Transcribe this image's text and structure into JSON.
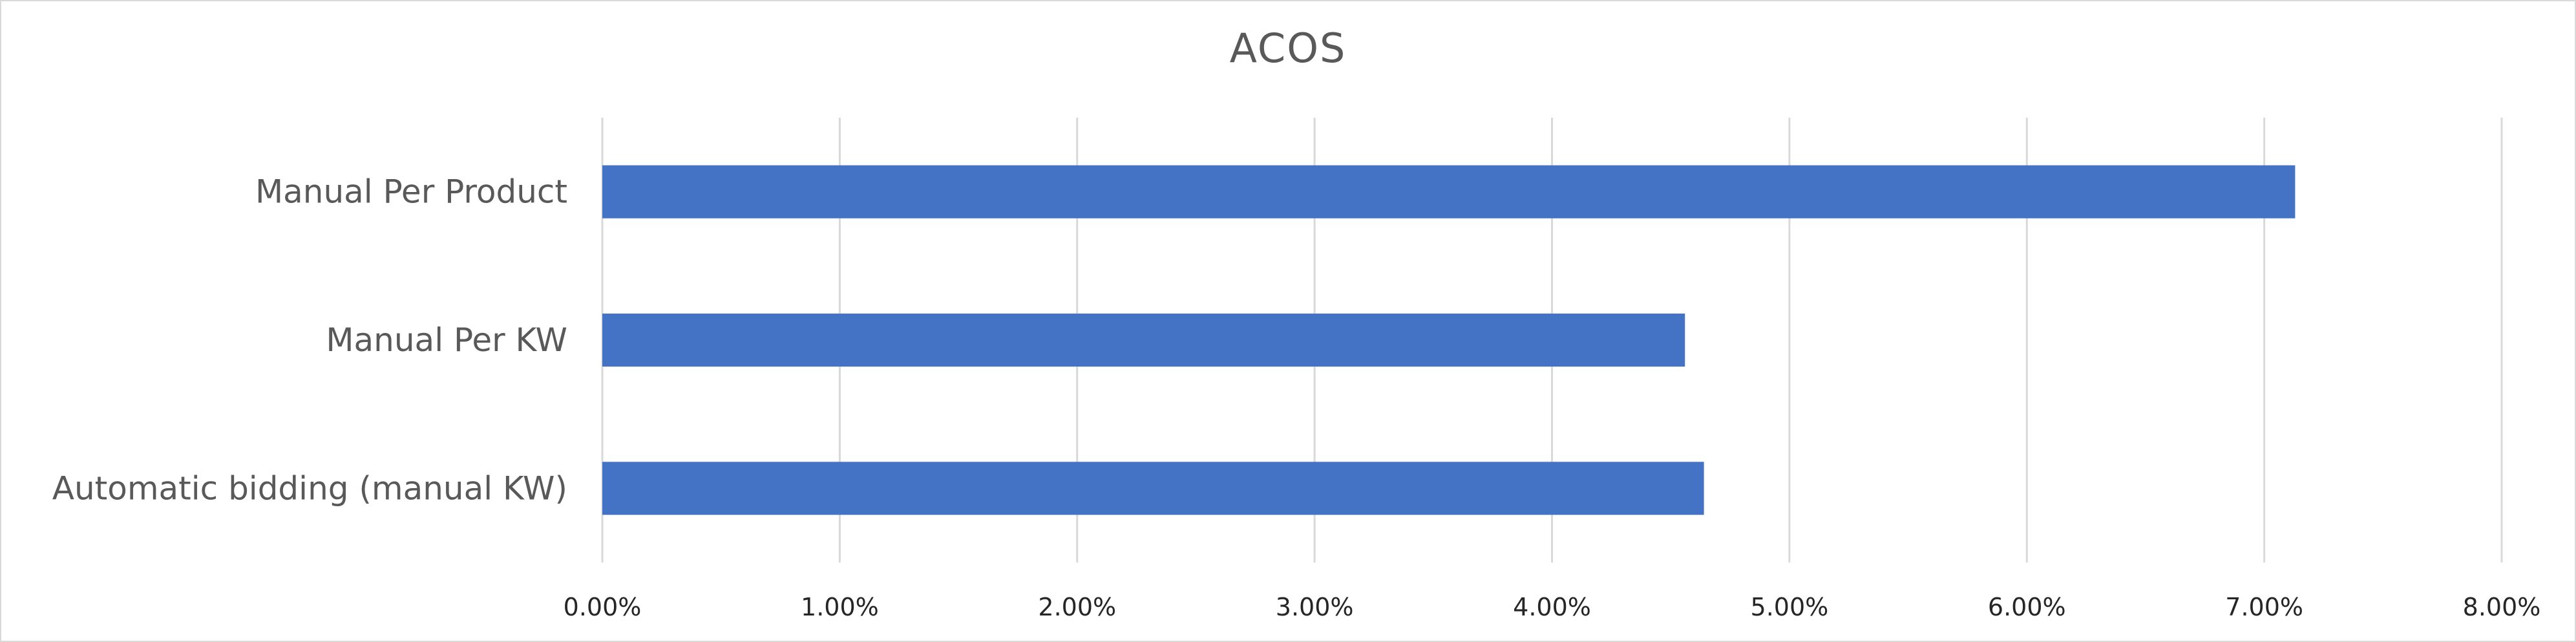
{
  "chart_data": {
    "type": "bar",
    "orientation": "horizontal",
    "title": "ACOS",
    "categories": [
      "Manual Per Product",
      "Manual Per KW",
      "Automatic bidding (manual KW)"
    ],
    "series": [
      {
        "values": [
          0.0713,
          0.0456,
          0.0464
        ]
      }
    ],
    "xlim": [
      0,
      0.08
    ],
    "xticks": [
      "0.00%",
      "1.00%",
      "2.00%",
      "3.00%",
      "4.00%",
      "5.00%",
      "6.00%",
      "7.00%",
      "8.00%"
    ],
    "value_format": "percent",
    "grid": "vertical",
    "legend": "none",
    "colors": {
      "bar": "#4472c4",
      "grid": "#d9d9d9",
      "text": "#595959",
      "border": "#d9d9d9"
    }
  }
}
